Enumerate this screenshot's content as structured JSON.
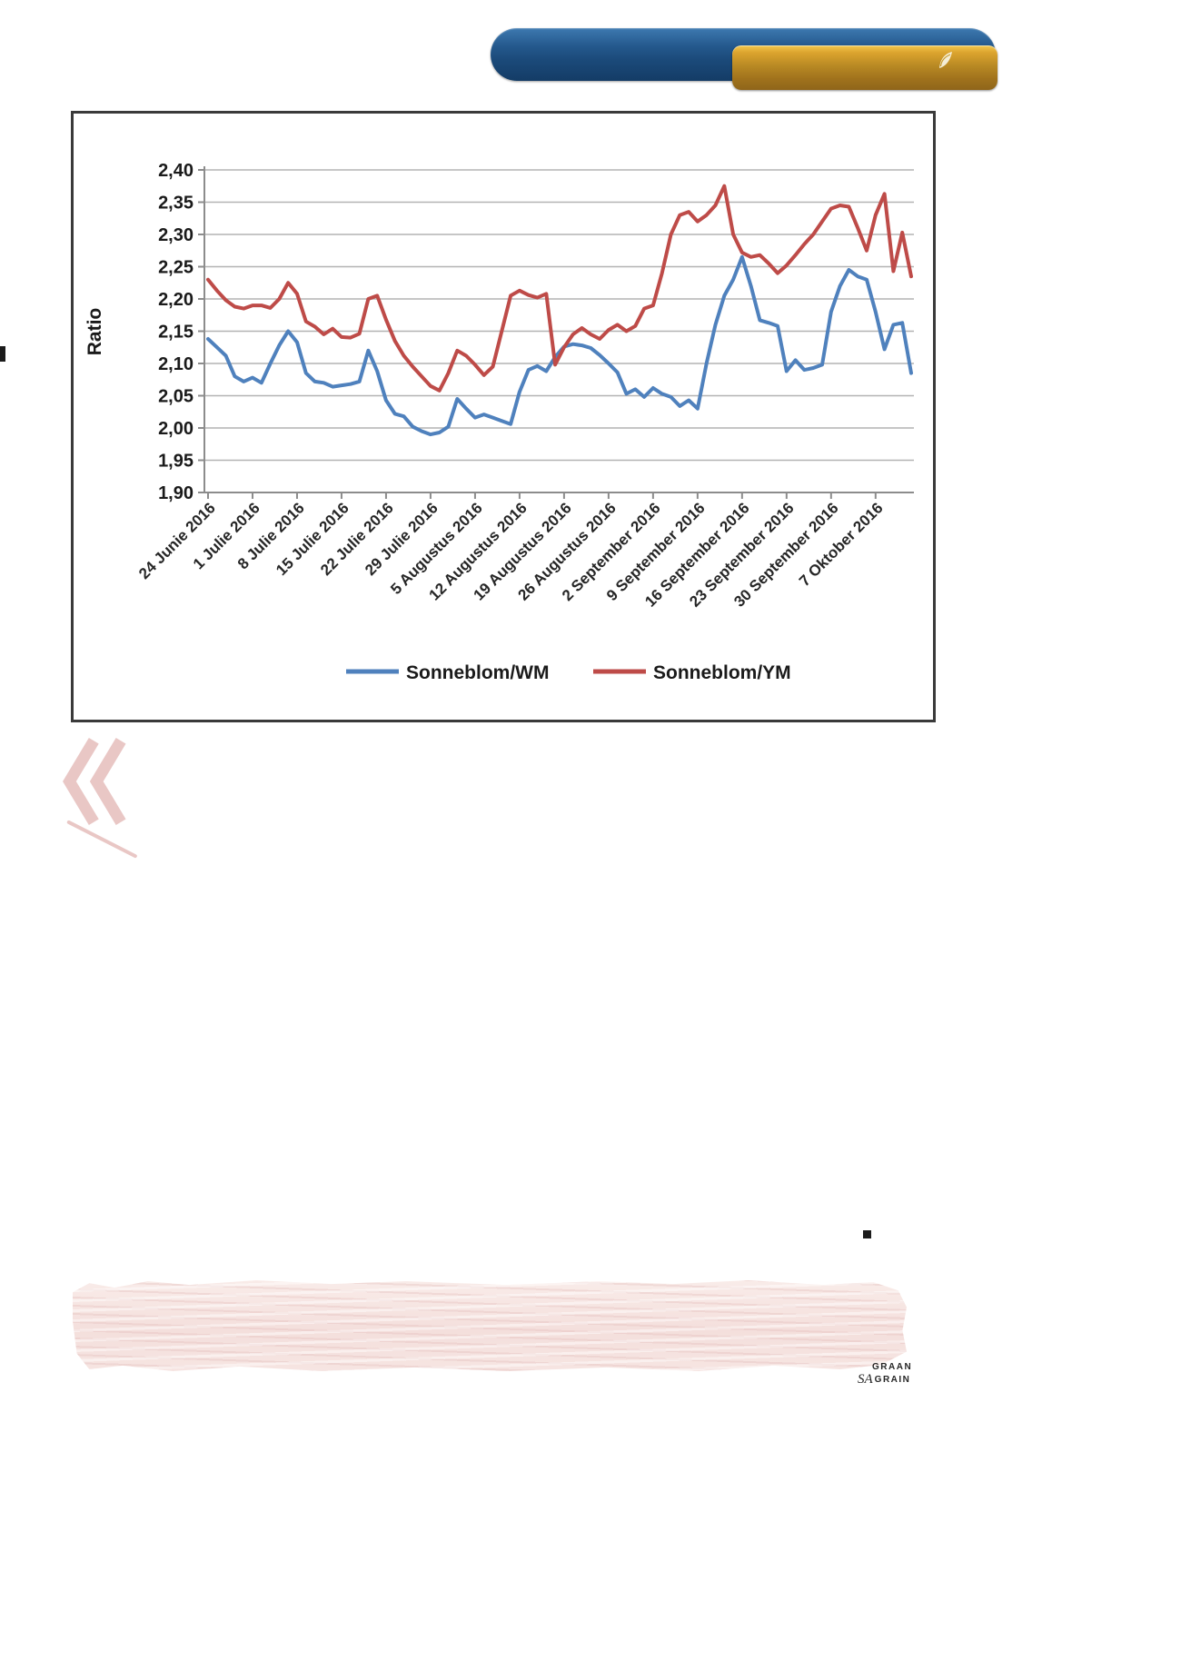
{
  "header": {
    "banner_blue_color": "#1b4a7a",
    "banner_gold_color": "#a0721c",
    "emblem_icon": "grain-sa-swoosh-icon"
  },
  "chart_data": {
    "type": "line",
    "title": "",
    "xlabel": "",
    "ylabel": "Ratio",
    "ylim": [
      1.9,
      2.4
    ],
    "y_step": 0.05,
    "grid": true,
    "legend_position": "bottom",
    "y_tick_labels": [
      "2,40",
      "2,35",
      "2,30",
      "2,25",
      "2,20",
      "2,15",
      "2,10",
      "2,05",
      "2,00",
      "1,95",
      "1,90"
    ],
    "x_tick_labels": [
      "24 Junie 2016",
      "1 Julie 2016",
      "8 Julie 2016",
      "15 Julie 2016",
      "22 Julie 2016",
      "29 Julie 2016",
      "5 Augustus 2016",
      "12 Augustus 2016",
      "19 Augustus 2016",
      "26 Augustus 2016",
      "2 September 2016",
      "9 September 2016",
      "16 September 2016",
      "23 September 2016",
      "30 September 2016",
      "7 Oktober 2016"
    ],
    "x_ticks_every_n_points": 5,
    "series": [
      {
        "name": "Sonneblom/WM",
        "color": "#4F81BD",
        "values": [
          2.138,
          2.125,
          2.112,
          2.08,
          2.072,
          2.078,
          2.07,
          2.1,
          2.128,
          2.15,
          2.133,
          2.085,
          2.072,
          2.07,
          2.064,
          2.066,
          2.068,
          2.072,
          2.12,
          2.088,
          2.043,
          2.022,
          2.018,
          2.002,
          1.995,
          1.99,
          1.993,
          2.002,
          2.045,
          2.03,
          2.016,
          2.021,
          2.016,
          2.011,
          2.006,
          2.056,
          2.09,
          2.096,
          2.088,
          2.11,
          2.126,
          2.13,
          2.128,
          2.124,
          2.113,
          2.1,
          2.086,
          2.053,
          2.06,
          2.048,
          2.062,
          2.053,
          2.048,
          2.034,
          2.043,
          2.03,
          2.1,
          2.16,
          2.205,
          2.23,
          2.265,
          2.22,
          2.167,
          2.163,
          2.158,
          2.088,
          2.105,
          2.09,
          2.093,
          2.098,
          2.18,
          2.22,
          2.245,
          2.235,
          2.23,
          2.18,
          2.122,
          2.16,
          2.163,
          2.085
        ]
      },
      {
        "name": "Sonneblom/YM",
        "color": "#BE4B48",
        "values": [
          2.23,
          2.213,
          2.198,
          2.188,
          2.185,
          2.19,
          2.19,
          2.186,
          2.2,
          2.225,
          2.208,
          2.165,
          2.157,
          2.145,
          2.154,
          2.141,
          2.14,
          2.146,
          2.2,
          2.205,
          2.168,
          2.135,
          2.112,
          2.095,
          2.08,
          2.065,
          2.058,
          2.085,
          2.12,
          2.112,
          2.098,
          2.082,
          2.095,
          2.15,
          2.205,
          2.213,
          2.206,
          2.202,
          2.208,
          2.098,
          2.125,
          2.145,
          2.155,
          2.145,
          2.138,
          2.152,
          2.16,
          2.15,
          2.158,
          2.185,
          2.19,
          2.24,
          2.3,
          2.33,
          2.335,
          2.32,
          2.33,
          2.345,
          2.375,
          2.3,
          2.272,
          2.265,
          2.268,
          2.255,
          2.24,
          2.252,
          2.268,
          2.285,
          2.3,
          2.32,
          2.34,
          2.345,
          2.343,
          2.31,
          2.275,
          2.33,
          2.363,
          2.243,
          2.303,
          2.235
        ]
      }
    ]
  },
  "decor": {
    "chevron_color": "#e9c7c5",
    "band_color": "#f4dfdc"
  },
  "footer": {
    "logo_line1": "GRAAN",
    "logo_sa": "SA",
    "logo_line2": "GRAIN"
  }
}
